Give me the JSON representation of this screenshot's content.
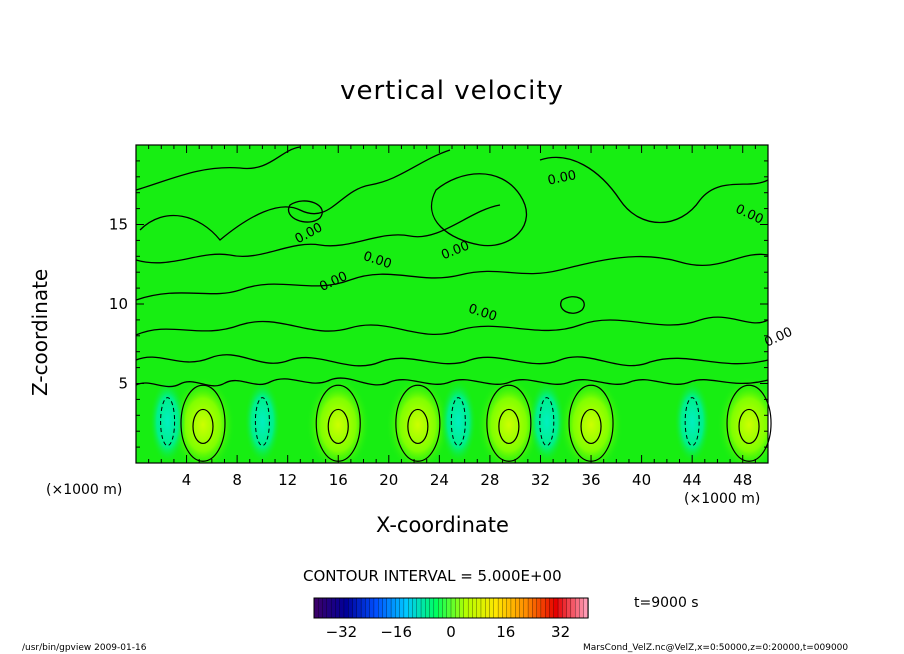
{
  "chart_data": {
    "type": "heatmap",
    "title": "vertical velocity",
    "xlabel": "X-coordinate",
    "ylabel": "Z-coordinate",
    "x_unit_label": "(×1000 m)",
    "xlim": [
      0,
      50
    ],
    "ylim": [
      0,
      20
    ],
    "x_ticks": [
      4,
      8,
      12,
      16,
      20,
      24,
      28,
      32,
      36,
      40,
      44,
      48
    ],
    "y_ticks": [
      5,
      10,
      15
    ],
    "contour_label": "0.00",
    "contour_interval_text": "CONTOUR INTERVAL = 5.000E+00",
    "colorbar": {
      "ticks": [
        -32,
        -16,
        0,
        16,
        32
      ],
      "range": [
        -40,
        40
      ],
      "colormap": [
        "#3a006a",
        "#00009a",
        "#0050ff",
        "#00c8ff",
        "#00ff60",
        "#b4ff00",
        "#ffe600",
        "#ff8c00",
        "#e60000",
        "#ff9ab4"
      ]
    },
    "field_base_color": "#17ee12",
    "updraft_centers_x": [
      5.3,
      16,
      22.3,
      29.5,
      36,
      48.5
    ],
    "downdraft_centers_x": [
      2.5,
      10,
      25.5,
      32.5,
      44
    ]
  },
  "time_label": "t=9000 s",
  "footer_left": "/usr/bin/gpview   2009-01-16",
  "footer_right": "MarsCond_VelZ.nc@VelZ,x=0:50000,z=0:20000,t=009000"
}
